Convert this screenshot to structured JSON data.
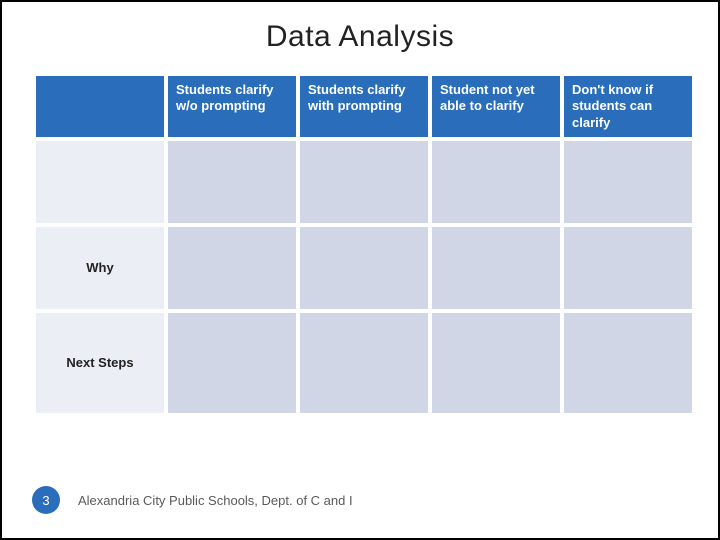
{
  "title": "Data Analysis",
  "colors": {
    "header_bg": "#2a6ebb",
    "header_text": "#ffffff",
    "cell_bg": "#d1d6e6",
    "rowhdr_bg": "#eceef5",
    "pagenum_bg": "#2a6ebb",
    "pagenum_text": "#ffffff",
    "footer_text": "#5a5a5a",
    "title_text": "#222222"
  },
  "table": {
    "column_headers": [
      "Students clarify w/o prompting",
      "Students clarify with prompting",
      "Student not yet able to clarify",
      "Don't know if students can clarify"
    ],
    "row_headers": [
      "",
      "Why",
      "Next Steps"
    ],
    "cells": [
      [
        "",
        "",
        "",
        ""
      ],
      [
        "",
        "",
        "",
        ""
      ],
      [
        "",
        "",
        "",
        ""
      ]
    ]
  },
  "footer": {
    "page_number": "3",
    "text": "Alexandria City Public Schools, Dept. of C and I"
  }
}
